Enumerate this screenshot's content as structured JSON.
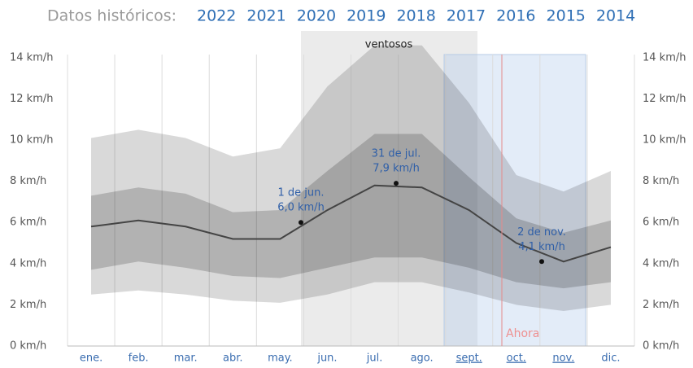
{
  "header": {
    "label": "Datos históricos:",
    "years": [
      "2022",
      "2021",
      "2020",
      "2019",
      "2018",
      "2017",
      "2016",
      "2015",
      "2014"
    ]
  },
  "chart_data": {
    "type": "band",
    "categories": [
      "ene.",
      "feb.",
      "mar.",
      "abr.",
      "may.",
      "jun.",
      "jul.",
      "ago.",
      "sept.",
      "oct.",
      "nov.",
      "dic."
    ],
    "series": [
      {
        "color": "#000000",
        "values": [
          2.5,
          2.7,
          2.5,
          2.2,
          2.1,
          2.5,
          3.1,
          3.1,
          2.6,
          2.0,
          1.7,
          2.0
        ]
      },
      {
        "color": "#000000",
        "values": [
          3.7,
          4.1,
          3.8,
          3.4,
          3.3,
          3.8,
          4.3,
          4.3,
          3.8,
          3.1,
          2.8,
          3.1
        ]
      },
      {
        "color": "#444444",
        "values": [
          5.8,
          6.1,
          5.8,
          5.2,
          5.2,
          6.6,
          7.8,
          7.7,
          6.6,
          5.0,
          4.1,
          4.8
        ]
      },
      {
        "color": "#000000",
        "values": [
          7.3,
          7.7,
          7.4,
          6.5,
          6.6,
          8.5,
          10.3,
          10.3,
          8.2,
          6.2,
          5.5,
          6.1
        ]
      },
      {
        "color": "#000000",
        "values": [
          10.1,
          10.5,
          10.1,
          9.2,
          9.6,
          12.6,
          14.6,
          14.6,
          11.8,
          8.3,
          7.5,
          8.5
        ]
      }
    ],
    "ylim": [
      0,
      15.3
    ],
    "yticks": [
      {
        "value": 0,
        "label": "0 km/h"
      },
      {
        "value": 2,
        "label": "2 km/h"
      },
      {
        "value": 4,
        "label": "4 km/h"
      },
      {
        "value": 6,
        "label": "6 km/h"
      },
      {
        "value": 8,
        "label": "8 km/h"
      },
      {
        "value": 10,
        "label": "10 km/h"
      },
      {
        "value": 12,
        "label": "12 km/h"
      },
      {
        "value": 14,
        "label": "14 km/h"
      }
    ],
    "grid": false,
    "region_label": "ventosos",
    "now_label": "Ahora",
    "annotations": [
      {
        "label": "1 de jun.",
        "value": 6.0,
        "value_label": "6,0 km/h"
      },
      {
        "label": "31 de jul.",
        "value": 7.9,
        "value_label": "7,9 km/h"
      },
      {
        "label": "2 de nov.",
        "value": 4.1,
        "value_label": "4,1 km/h"
      }
    ]
  }
}
